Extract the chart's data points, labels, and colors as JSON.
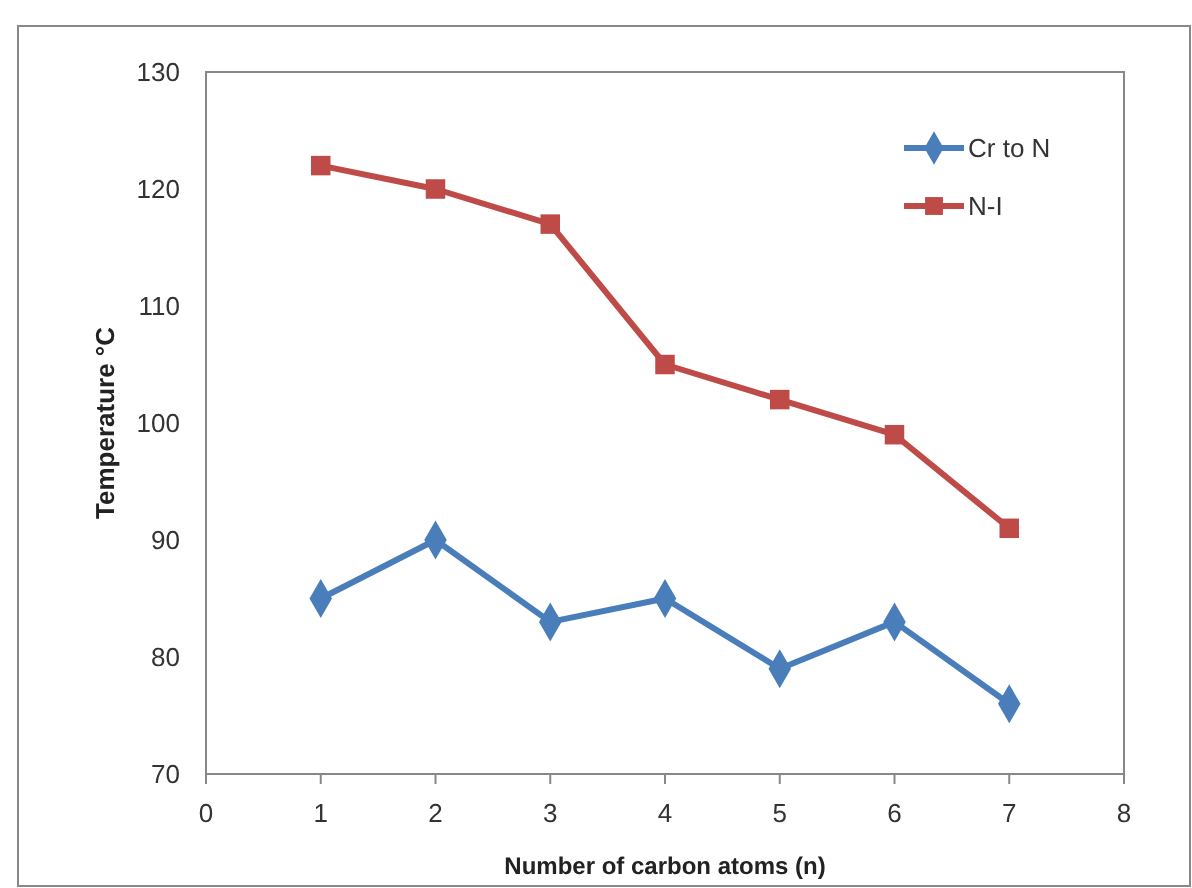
{
  "chart_data": {
    "type": "line",
    "xlabel": "Number of carbon atoms (n)",
    "ylabel": "Temperature °C",
    "x": [
      1,
      2,
      3,
      4,
      5,
      6,
      7
    ],
    "series": [
      {
        "name": "Cr to N",
        "color": "#4a7ebb",
        "marker": "diamond",
        "values": [
          85,
          90,
          83,
          85,
          79,
          83,
          76
        ]
      },
      {
        "name": "N-I",
        "color": "#be4b48",
        "marker": "square",
        "values": [
          122,
          120,
          117,
          105,
          102,
          99,
          91
        ]
      }
    ],
    "xlim": [
      0,
      8
    ],
    "xticks": [
      0,
      1,
      2,
      3,
      4,
      5,
      6,
      7,
      8
    ],
    "ylim": [
      70,
      130
    ],
    "yticks": [
      70,
      80,
      90,
      100,
      110,
      120,
      130
    ],
    "grid": false,
    "legend": "top right"
  }
}
